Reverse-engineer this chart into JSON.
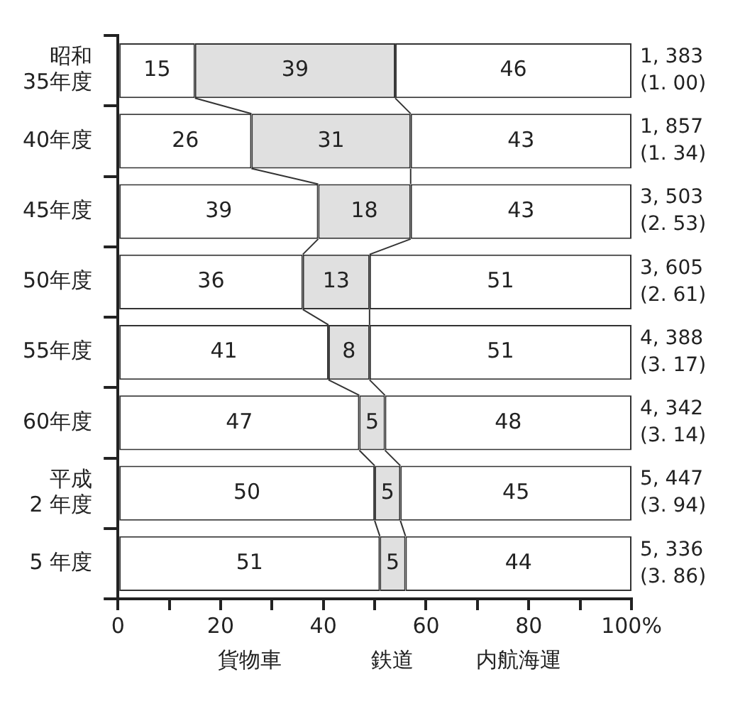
{
  "chart_data": {
    "type": "bar",
    "orientation": "horizontal",
    "stacked": true,
    "categories": [
      "昭和\n35年度",
      "40年度",
      "45年度",
      "50年度",
      "55年度",
      "60年度",
      "平成\n2 年度",
      "5 年度"
    ],
    "series": [
      {
        "name": "貨物車",
        "color": "#ffffff",
        "values": [
          15,
          26,
          39,
          36,
          41,
          47,
          50,
          51
        ]
      },
      {
        "name": "鉄道",
        "color": "#e0e0e0",
        "values": [
          39,
          31,
          18,
          13,
          8,
          5,
          5,
          5
        ]
      },
      {
        "name": "内航海運",
        "color": "#ffffff",
        "values": [
          46,
          43,
          43,
          51,
          51,
          48,
          45,
          44
        ]
      }
    ],
    "xlim": [
      0,
      100
    ],
    "xticks": [
      0,
      {
        "value": 10,
        "label": null
      },
      20,
      {
        "value": 30,
        "label": null
      },
      40,
      {
        "value": 50,
        "label": null
      },
      60,
      {
        "value": 70,
        "label": null
      },
      80,
      {
        "value": 90,
        "label": null
      },
      {
        "value": 100,
        "label": "100%"
      }
    ],
    "data_labels": true,
    "grid": false,
    "legend": false,
    "annotations": [
      "1, 383\n(1. 00)",
      "1, 857\n(1. 34)",
      "3, 503\n(2. 53)",
      "3, 605\n(2. 61)",
      "4, 388\n(3. 17)",
      "4, 342\n(3. 14)",
      "5, 447\n(3. 94)",
      "5, 336\n(3. 86)"
    ]
  }
}
